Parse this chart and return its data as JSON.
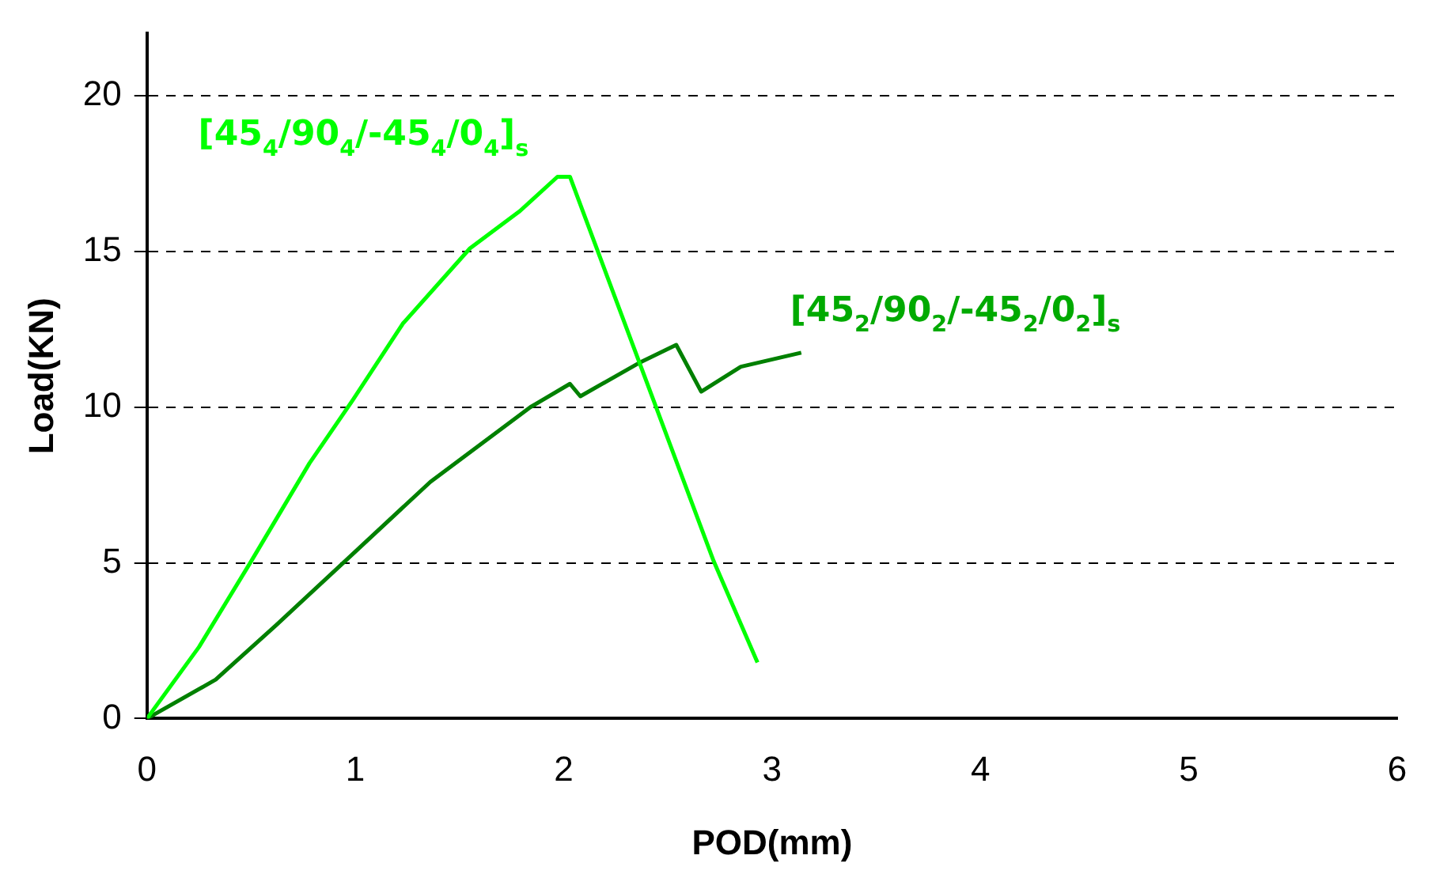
{
  "chart_data": {
    "type": "line",
    "xlabel": "POD(mm)",
    "ylabel": "Load(KN)",
    "xlim": [
      0,
      6
    ],
    "xticks": [
      0,
      1,
      2,
      3,
      4,
      5,
      6
    ],
    "ylim": [
      0,
      22
    ],
    "yticks": [
      0,
      5,
      10,
      15,
      20
    ],
    "grid": "y",
    "legend": false,
    "marker": "none",
    "line_style": "solid",
    "series": [
      {
        "name": "[45$_{4}$/90$_{4}$/-45$_{4}$/0$_{4}$]$_{s}$",
        "color": "#00ff00",
        "x": [
          0,
          0.25,
          0.5,
          0.78,
          0.99,
          1.23,
          1.55,
          1.79,
          1.97,
          2.03,
          2.72,
          2.93
        ],
        "values": [
          0,
          2.3,
          5.05,
          8.2,
          10.25,
          12.7,
          15.1,
          16.3,
          17.4,
          17.4,
          5.05,
          1.8
        ]
      },
      {
        "name": "[45$_{2}$/90$_{2}$/-45$_{2}$/0$_{2}$]$_{s}$",
        "color": "#008000",
        "x": [
          0,
          0.33,
          0.62,
          0.95,
          1.36,
          1.84,
          2.03,
          2.08,
          2.37,
          2.54,
          2.66,
          2.85,
          3.14
        ],
        "values": [
          0,
          1.25,
          3,
          5.05,
          7.6,
          10,
          10.75,
          10.35,
          11.45,
          12,
          10.5,
          11.3,
          11.75
        ]
      }
    ]
  }
}
